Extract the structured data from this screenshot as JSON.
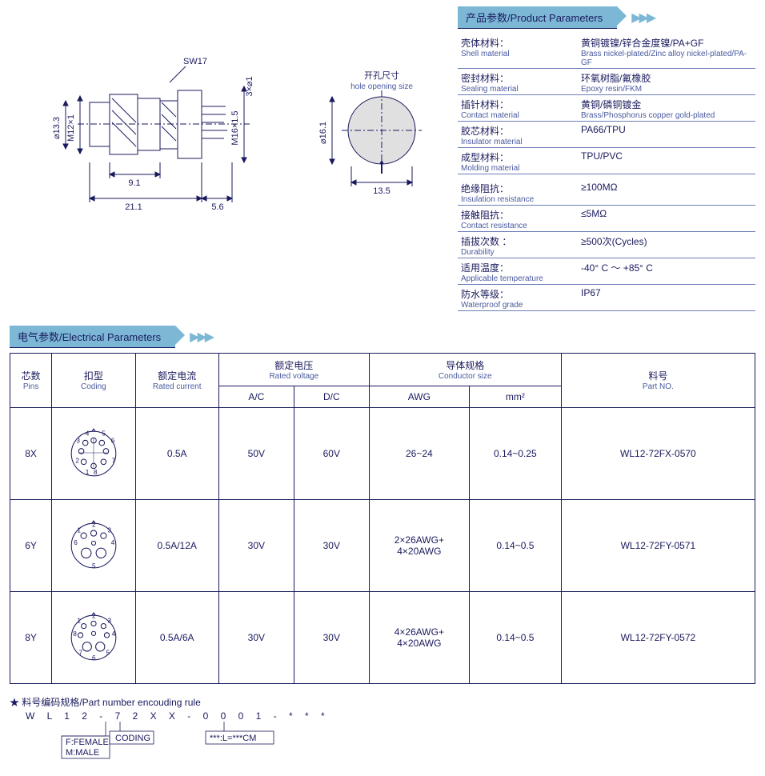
{
  "colors": {
    "primary": "#1a1a5e",
    "header_bg": "#7cb8d6",
    "border": "#6b7db8"
  },
  "drawing": {
    "sw17_label": "SW17",
    "d13_3": "⌀13.3",
    "m12x1": "M12×1",
    "m16x1_5": "M16×1.5",
    "3x1": "3×⌀1",
    "d16_1": "⌀16.1",
    "w21_1": "21.1",
    "w9_1": "9.1",
    "w5_6": "5.6",
    "w13_5": "13.5",
    "hole_cn": "开孔尺寸",
    "hole_en": "hole opening size"
  },
  "product_params": {
    "header": "产品参数/Product Parameters",
    "rows1": [
      {
        "cn": "壳体材料：",
        "en": "Shell material",
        "vcn": "黄铜镀镍/锌合金度镍/PA+GF",
        "ven": "Brass nickel-plated/Zinc alloy nickel-plated/PA-GF"
      },
      {
        "cn": "密封材料：",
        "en": "Sealing material",
        "vcn": "环氧树脂/氟橡胶",
        "ven": "Epoxy resin/FKM"
      },
      {
        "cn": "插针材料：",
        "en": "Contact material",
        "vcn": "黄铜/磷铜镀金",
        "ven": "Brass/Phosphorus copper gold-plated"
      },
      {
        "cn": "胶芯材料：",
        "en": "Insulator material",
        "vcn": "PA66/TPU",
        "ven": ""
      },
      {
        "cn": "成型材料：",
        "en": "Molding material",
        "vcn": "TPU/PVC",
        "ven": ""
      }
    ],
    "rows2": [
      {
        "cn": "绝缘阻抗：",
        "en": "Insulation resistance",
        "vcn": "≥100MΩ",
        "ven": ""
      },
      {
        "cn": "接触阻抗：",
        "en": "Contact resistance",
        "vcn": "≤5MΩ",
        "ven": ""
      },
      {
        "cn": "插拔次数 ：",
        "en": "Durability",
        "vcn": "≥500次(Cycles)",
        "ven": ""
      },
      {
        "cn": "适用温度：",
        "en": "Applicable temperature",
        "vcn": "-40° C ～ +85° C",
        "ven": ""
      },
      {
        "cn": "防水等级：",
        "en": "Waterproof grade",
        "vcn": "IP67",
        "ven": ""
      }
    ]
  },
  "elec": {
    "header": "电气参数/Electrical Parameters",
    "cols": {
      "pins": {
        "cn": "芯数",
        "en": "Pins"
      },
      "coding": {
        "cn": "扣型",
        "en": "Coding"
      },
      "current": {
        "cn": "额定电流",
        "en": "Rated current"
      },
      "voltage": {
        "cn": "额定电压",
        "en": "Rated voltage"
      },
      "conductor": {
        "cn": "导体规格",
        "en": "Conductor size"
      },
      "ac": "A/C",
      "dc": "D/C",
      "awg": "AWG",
      "mm2": "mm²",
      "partno": {
        "cn": "料号",
        "en": "Part NO."
      }
    },
    "rows": [
      {
        "pins": "8X",
        "current": "0.5A",
        "ac": "50V",
        "dc": "60V",
        "awg": "26~24",
        "mm2": "0.14~0.25",
        "part": "WL12-72FX-0570"
      },
      {
        "pins": "6Y",
        "current": "0.5A/12A",
        "ac": "30V",
        "dc": "30V",
        "awg": "2×26AWG+\n4×20AWG",
        "mm2": "0.14~0.5",
        "part": "WL12-72FY-0571"
      },
      {
        "pins": "8Y",
        "current": "0.5A/6A",
        "ac": "30V",
        "dc": "30V",
        "awg": "4×26AWG+\n4×20AWG",
        "mm2": "0.14~0.5",
        "part": "WL12-72FY-0572"
      }
    ]
  },
  "encoding": {
    "title": "料号编码规格/Part number encouding rule",
    "pattern": "W L 1 2 - 7 2 X X - 0 0 0 1 - * * *",
    "female": "F:FEMALE",
    "male": "M:MALE",
    "coding": "CODING",
    "len": "***:L=***CM"
  }
}
